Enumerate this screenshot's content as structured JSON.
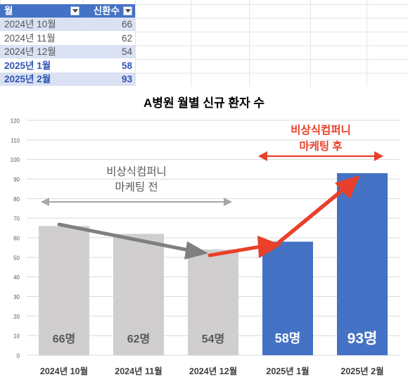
{
  "table": {
    "header": {
      "col1": "월",
      "col2": "신환수"
    },
    "rows": [
      {
        "month": "2024년 10월",
        "value": "66",
        "style": "normal"
      },
      {
        "month": "2024년 11월",
        "value": "62",
        "style": "normal"
      },
      {
        "month": "2024년 12월",
        "value": "54",
        "style": "normal"
      },
      {
        "month": "2025년 1월",
        "value": "58",
        "style": "bold"
      },
      {
        "month": "2025년 2월",
        "value": "93",
        "style": "bold"
      }
    ]
  },
  "chart_data": {
    "type": "bar",
    "title": "A병원 월별 신규 환자 수",
    "categories": [
      "2024년 10월",
      "2024년 11월",
      "2024년 12월",
      "2025년 1월",
      "2025년 2월"
    ],
    "values": [
      66,
      62,
      54,
      58,
      93
    ],
    "data_labels": [
      "66명",
      "62명",
      "54명",
      "58명",
      "93명"
    ],
    "bar_colors": [
      "#D0CECE",
      "#D0CECE",
      "#D0CECE",
      "#4472C4",
      "#4472C4"
    ],
    "ylim": [
      0,
      120
    ],
    "yticks": [
      "0",
      "10",
      "20",
      "30",
      "40",
      "50",
      "60",
      "70",
      "80",
      "90",
      "100",
      "110",
      "120"
    ],
    "grid": true,
    "annotations": {
      "before_line1": "비상식컴퍼니",
      "before_line2": "마케팅 전",
      "after_line1": "비상식컴퍼니",
      "after_line2": "마케팅 후"
    },
    "colors": {
      "gray_arrow": "#7F7F7F",
      "red_arrow": "#E8402A",
      "title": "#000000"
    }
  }
}
